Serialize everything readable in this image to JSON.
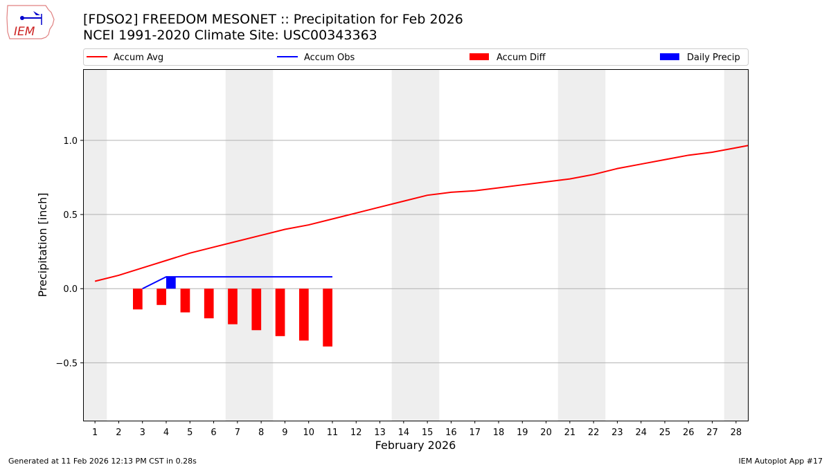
{
  "title": "[FDSO2] FREEDOM MESONET :: Precipitation for Feb 2026",
  "subtitle": "NCEI 1991-2020 Climate Site: USC00343363",
  "logo_text": "IEM",
  "footer_left": "Generated at 11 Feb 2026 12:13 PM CST in 0.28s",
  "footer_right": "IEM Autoplot App #17",
  "chart_data": {
    "type": "line",
    "xlabel": "February 2026",
    "ylabel": "Precipitation [inch]",
    "xlim": [
      0.5,
      28.5
    ],
    "ylim": [
      -0.89,
      1.48
    ],
    "yticks": [
      -0.5,
      0.0,
      0.5,
      1.0
    ],
    "ytick_labels": [
      "−0.5",
      "0.0",
      "0.5",
      "1.0"
    ],
    "xticks": [
      1,
      2,
      3,
      4,
      5,
      6,
      7,
      8,
      9,
      10,
      11,
      12,
      13,
      14,
      15,
      16,
      17,
      18,
      19,
      20,
      21,
      22,
      23,
      24,
      25,
      26,
      27,
      28
    ],
    "grid": "horizontal",
    "legend_placement": "top",
    "weekend_shading": [
      [
        0.5,
        1.5
      ],
      [
        6.5,
        8.5
      ],
      [
        13.5,
        15.5
      ],
      [
        20.5,
        22.5
      ],
      [
        27.5,
        28.5
      ]
    ],
    "colors": {
      "avg": "#ff0000",
      "obs": "#0000ff",
      "diff": "#ff0000",
      "daily": "#0000ff",
      "shade": "#eeeeee"
    },
    "series": [
      {
        "name": "Accum Avg",
        "kind": "line",
        "x": [
          1,
          2,
          3,
          4,
          5,
          6,
          7,
          8,
          9,
          10,
          11,
          12,
          13,
          14,
          15,
          16,
          17,
          18,
          19,
          20,
          21,
          22,
          23,
          24,
          25,
          26,
          27,
          28,
          28.5
        ],
        "values": [
          0.05,
          0.09,
          0.14,
          0.19,
          0.24,
          0.28,
          0.32,
          0.36,
          0.4,
          0.43,
          0.47,
          0.51,
          0.55,
          0.59,
          0.63,
          0.65,
          0.66,
          0.68,
          0.7,
          0.72,
          0.74,
          0.77,
          0.81,
          0.84,
          0.87,
          0.9,
          0.92,
          0.95,
          0.965
        ]
      },
      {
        "name": "Accum Obs",
        "kind": "line",
        "x": [
          3,
          4,
          5,
          6,
          7,
          8,
          9,
          10,
          11
        ],
        "values": [
          0.0,
          0.08,
          0.08,
          0.08,
          0.08,
          0.08,
          0.08,
          0.08,
          0.08
        ]
      },
      {
        "name": "Accum Diff",
        "kind": "bar",
        "x": [
          3,
          4,
          5,
          6,
          7,
          8,
          9,
          10,
          11
        ],
        "values": [
          -0.14,
          -0.11,
          -0.16,
          -0.2,
          -0.24,
          -0.28,
          -0.32,
          -0.35,
          -0.39
        ]
      },
      {
        "name": "Daily Precip",
        "kind": "bar",
        "x": [
          4
        ],
        "values": [
          0.08
        ]
      }
    ]
  }
}
